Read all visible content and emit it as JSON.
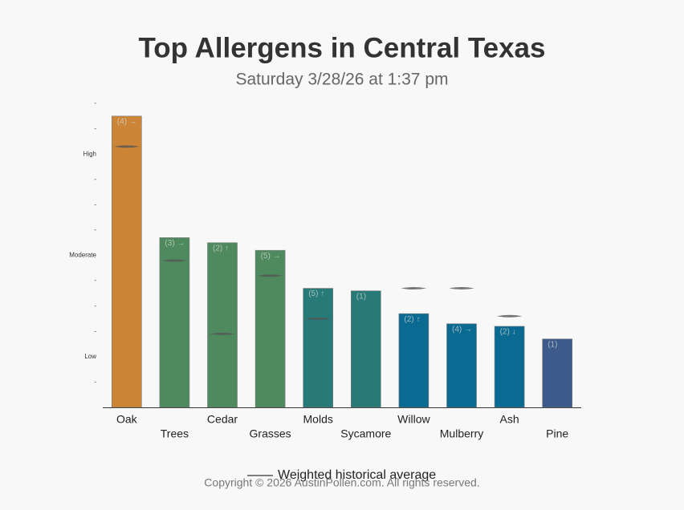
{
  "chart_data": {
    "type": "bar",
    "title": "Top Allergens in Central Texas",
    "subtitle": "Saturday 3/28/26 at 1:37 pm",
    "categories": [
      "Oak",
      "Trees",
      "Cedar",
      "Grasses",
      "Molds",
      "Sycamore",
      "Willow",
      "Mulberry",
      "Ash",
      "Pine"
    ],
    "values": [
      11.5,
      6.7,
      6.5,
      6.2,
      4.7,
      4.6,
      3.7,
      3.3,
      3.2,
      2.7
    ],
    "colors": [
      "#cc8536",
      "#4e8a5e",
      "#4e8a5e",
      "#4e8a5e",
      "#277a78",
      "#277a78",
      "#0b6a92",
      "#0b6a92",
      "#0b6a92",
      "#3c5a8a"
    ],
    "annotations": [
      "(4) →",
      "(3) →",
      "(2) ↑",
      "(5) →",
      "(5) ↑",
      "(1)",
      "(2) ↑",
      "(4) →",
      "(2) ↓",
      "(1)"
    ],
    "historical_average": [
      10.3,
      5.8,
      2.9,
      5.2,
      3.5,
      null,
      4.7,
      4.7,
      3.6,
      null
    ],
    "legend_label": "Weighted historical average",
    "ylim": [
      0,
      12
    ],
    "yticks": [
      {
        "value": 1,
        "label": "-"
      },
      {
        "value": 2,
        "label": "Low"
      },
      {
        "value": 3,
        "label": "-"
      },
      {
        "value": 4,
        "label": "-"
      },
      {
        "value": 5,
        "label": "-"
      },
      {
        "value": 6,
        "label": "Moderate"
      },
      {
        "value": 7,
        "label": "-"
      },
      {
        "value": 8,
        "label": "-"
      },
      {
        "value": 9,
        "label": "-"
      },
      {
        "value": 10,
        "label": "High"
      },
      {
        "value": 11,
        "label": "-"
      },
      {
        "value": 12,
        "label": "-"
      }
    ],
    "footer": "Copyright © 2026 AustinPollen.com.  All rights reserved."
  }
}
